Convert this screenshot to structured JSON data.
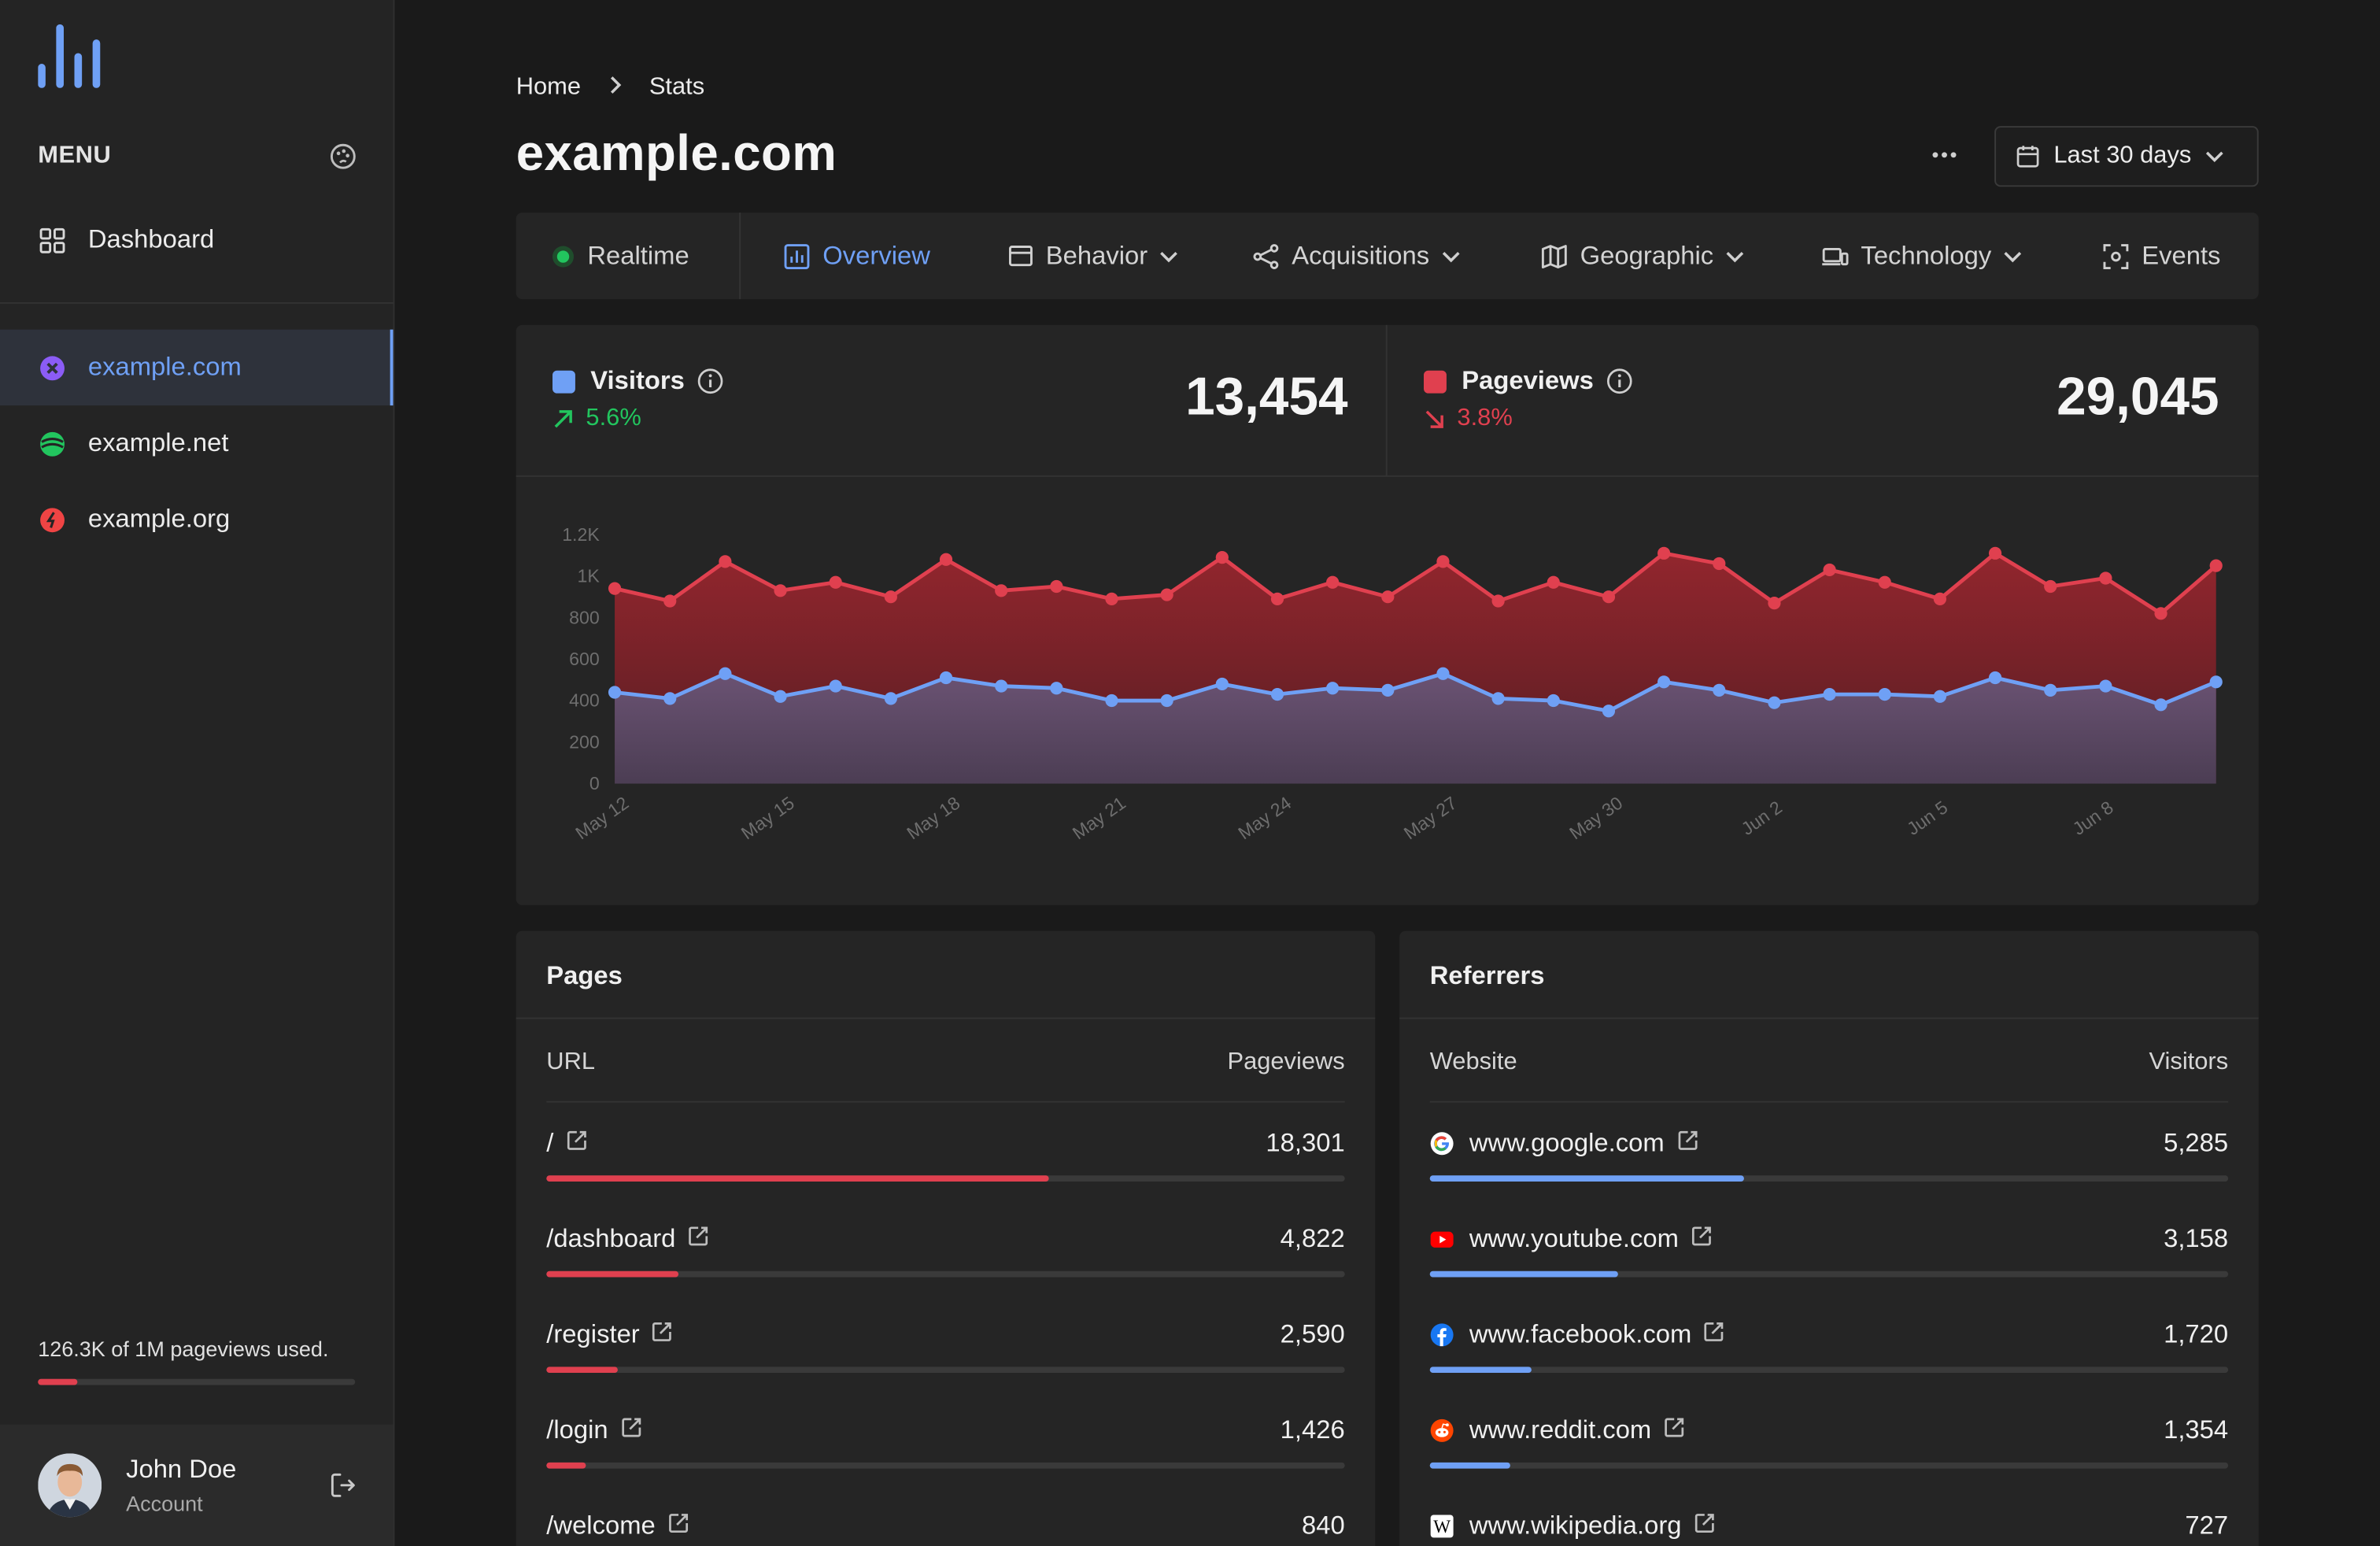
{
  "sidebar": {
    "menu_label": "MENU",
    "dashboard_label": "Dashboard",
    "sites": [
      {
        "label": "example.com",
        "color": "#8b5cf6"
      },
      {
        "label": "example.net",
        "color": "#22c55e"
      },
      {
        "label": "example.org",
        "color": "#ef4444"
      }
    ],
    "usage_text": "126.3K of 1M pageviews used.",
    "usage_fraction": 0.126,
    "user": {
      "name": "John Doe",
      "subtitle": "Account"
    }
  },
  "breadcrumb": {
    "home": "Home",
    "current": "Stats"
  },
  "page_title": "example.com",
  "date_range": "Last 30 days",
  "tabs": [
    "Realtime",
    "Overview",
    "Behavior",
    "Acquisitions",
    "Geographic",
    "Technology",
    "Events"
  ],
  "stats": {
    "visitors": {
      "label": "Visitors",
      "change": "5.6%",
      "value": "13,454",
      "color": "#6fa0f5"
    },
    "pageviews": {
      "label": "Pageviews",
      "change": "3.8%",
      "value": "29,045",
      "color": "#e0404f"
    }
  },
  "chart_data": {
    "type": "area",
    "x": [
      "May 12",
      "May 13",
      "May 14",
      "May 15",
      "May 16",
      "May 17",
      "May 18",
      "May 19",
      "May 20",
      "May 21",
      "May 22",
      "May 23",
      "May 24",
      "May 25",
      "May 26",
      "May 27",
      "May 28",
      "May 29",
      "May 30",
      "May 31",
      "Jun 1",
      "Jun 2",
      "Jun 3",
      "Jun 4",
      "Jun 5",
      "Jun 6",
      "Jun 7",
      "Jun 8",
      "Jun 9",
      "Jun 10"
    ],
    "x_tick_labels": [
      "May 12",
      "May 15",
      "May 18",
      "May 21",
      "May 24",
      "May 27",
      "May 30",
      "Jun 2",
      "Jun 5",
      "Jun 8"
    ],
    "y_tick_labels": [
      "0",
      "200",
      "400",
      "600",
      "800",
      "1K",
      "1.2K"
    ],
    "ylim": [
      0,
      1200
    ],
    "series": [
      {
        "name": "Pageviews",
        "color": "#e0404f",
        "values": [
          940,
          880,
          1070,
          930,
          970,
          900,
          1080,
          930,
          950,
          890,
          910,
          1090,
          890,
          970,
          900,
          1070,
          880,
          970,
          900,
          1110,
          1060,
          870,
          1030,
          970,
          890,
          1110,
          950,
          990,
          820,
          1050
        ]
      },
      {
        "name": "Visitors",
        "color": "#6fa0f5",
        "values": [
          440,
          410,
          530,
          420,
          470,
          410,
          510,
          470,
          460,
          400,
          400,
          480,
          430,
          460,
          450,
          530,
          410,
          400,
          350,
          490,
          450,
          390,
          430,
          430,
          420,
          510,
          450,
          470,
          380,
          490
        ]
      }
    ]
  },
  "pages": {
    "title": "Pages",
    "col_left": "URL",
    "col_right": "Pageviews",
    "rows": [
      {
        "label": "/",
        "value": "18,301",
        "fraction": 0.63
      },
      {
        "label": "/dashboard",
        "value": "4,822",
        "fraction": 0.165
      },
      {
        "label": "/register",
        "value": "2,590",
        "fraction": 0.089
      },
      {
        "label": "/login",
        "value": "1,426",
        "fraction": 0.049
      },
      {
        "label": "/welcome",
        "value": "840",
        "fraction": 0.03
      }
    ]
  },
  "referrers": {
    "title": "Referrers",
    "col_left": "Website",
    "col_right": "Visitors",
    "rows": [
      {
        "label": "www.google.com",
        "value": "5,285",
        "fraction": 0.393,
        "icon": "google-icon"
      },
      {
        "label": "www.youtube.com",
        "value": "3,158",
        "fraction": 0.235,
        "icon": "youtube-icon"
      },
      {
        "label": "www.facebook.com",
        "value": "1,720",
        "fraction": 0.128,
        "icon": "facebook-icon"
      },
      {
        "label": "www.reddit.com",
        "value": "1,354",
        "fraction": 0.101,
        "icon": "reddit-icon"
      },
      {
        "label": "www.wikipedia.org",
        "value": "727",
        "fraction": 0.054,
        "icon": "wikipedia-icon"
      }
    ]
  }
}
